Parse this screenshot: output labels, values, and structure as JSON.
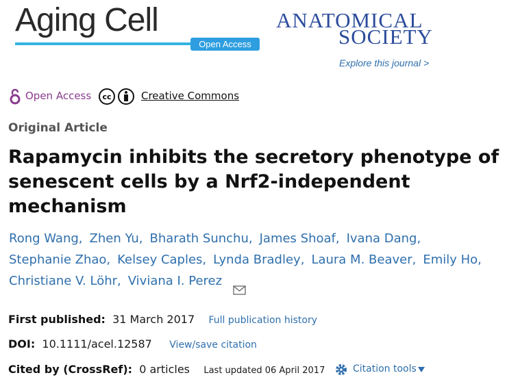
{
  "header": {
    "journal": "Aging Cell",
    "badge": "Open Access",
    "society_line1": "ANATOMICAL",
    "society_line2": "SOCIETY",
    "explore": "Explore this journal >"
  },
  "access": {
    "open_access": "Open Access",
    "license": "Creative Commons"
  },
  "article_type": "Original Article",
  "title": "Rapamycin inhibits the secretory phenotype of senescent cells by a Nrf2-independent mechanism",
  "authors": [
    "Rong Wang,",
    "Zhen Yu,",
    "Bharath Sunchu,",
    "James Shoaf,",
    "Ivana Dang,",
    "Stephanie Zhao,",
    "Kelsey Caples,",
    "Lynda Bradley,",
    "Laura M. Beaver,",
    "Emily Ho,",
    "Christiane V. Löhr,",
    "Viviana I. Perez"
  ],
  "meta": {
    "first_published_label": "First published:",
    "first_published": "31 March 2017",
    "history_link": "Full publication history",
    "doi_label": "DOI:",
    "doi": "10.1111/acel.12587",
    "citation_link": "View/save citation",
    "cited_label": "Cited by (CrossRef):",
    "cited": "0 articles",
    "last_updated": "Last updated 06 April 2017",
    "tools": "Citation tools"
  }
}
